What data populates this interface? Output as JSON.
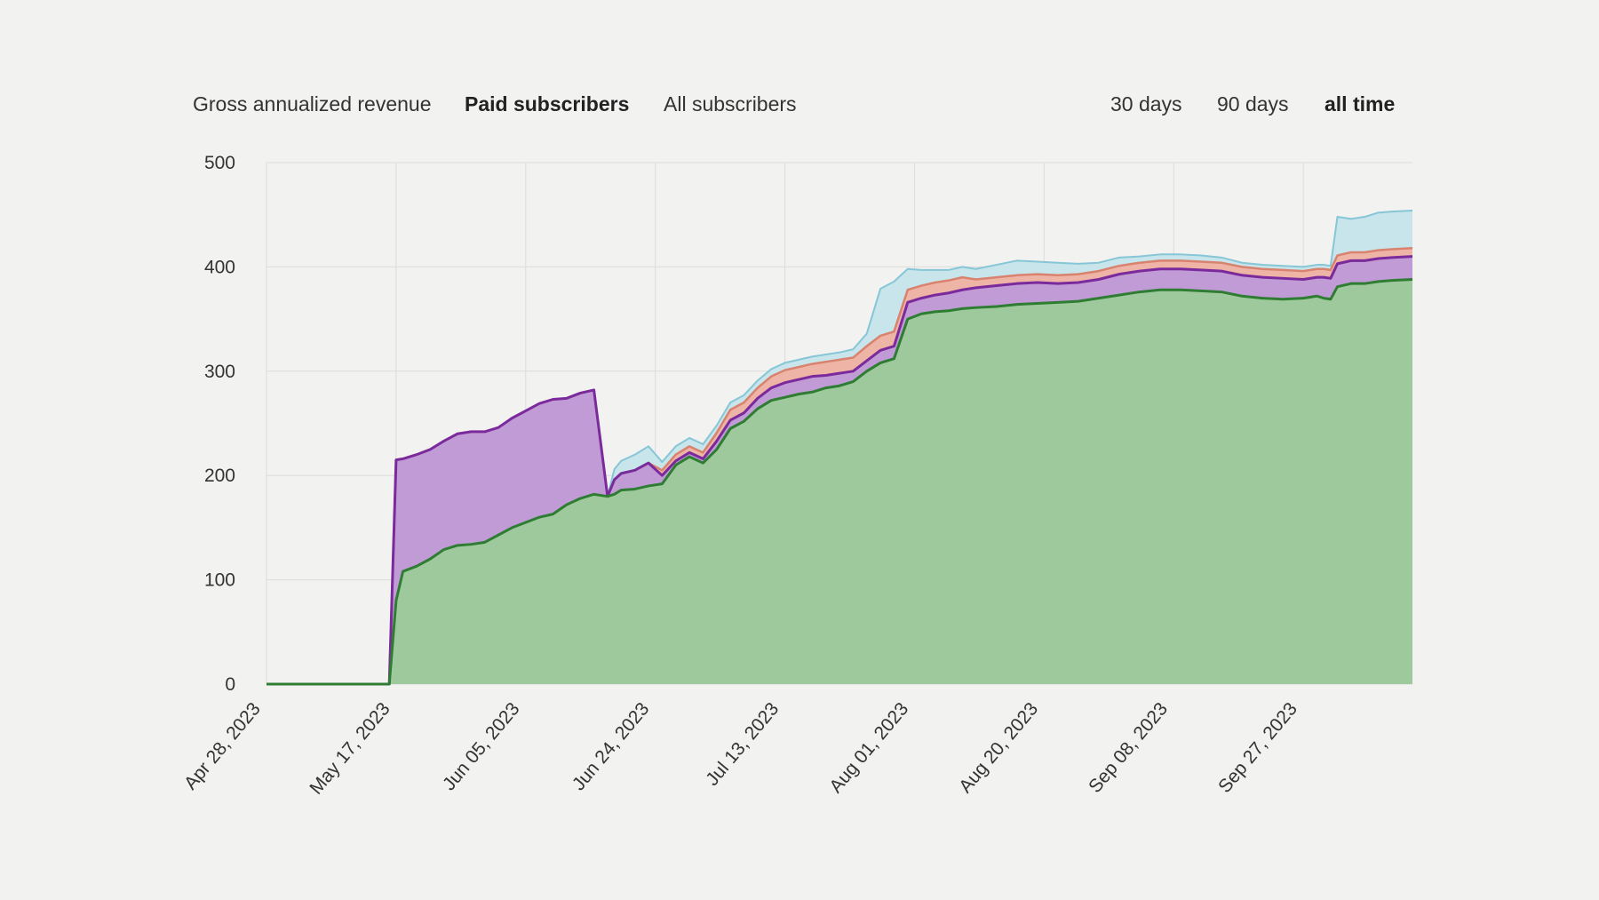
{
  "metric_tabs": [
    {
      "label": "Gross annualized revenue",
      "active": false
    },
    {
      "label": "Paid subscribers",
      "active": true
    },
    {
      "label": "All subscribers",
      "active": false
    }
  ],
  "range_tabs": [
    {
      "label": "30 days",
      "active": false
    },
    {
      "label": "90 days",
      "active": false
    },
    {
      "label": "all time",
      "active": true
    }
  ],
  "colors": {
    "green_fill": "#9ec99c",
    "green_line": "#2e7d32",
    "purple_fill": "#c09bd6",
    "purple_line": "#7b2a9c",
    "red_fill": "#eeb4a6",
    "red_line": "#d9826f",
    "blue_fill": "#c7e5ea",
    "blue_line": "#86c6d6",
    "grid": "#dcdcdc"
  },
  "chart_data": {
    "type": "area",
    "stacked": true,
    "x_start": "2023-04-28",
    "x_end": "2023-10-13",
    "xticks": [
      "Apr 28, 2023",
      "May 17, 2023",
      "Jun 05, 2023",
      "Jun 24, 2023",
      "Jul 13, 2023",
      "Aug 01, 2023",
      "Aug 20, 2023",
      "Sep 08, 2023",
      "Sep 27, 2023"
    ],
    "yticks": [
      "0",
      "100",
      "200",
      "300",
      "400",
      "500"
    ],
    "ylim": [
      0,
      500
    ],
    "grid": true,
    "legend": "none",
    "x": [
      "2023-04-28",
      "2023-05-05",
      "2023-05-12",
      "2023-05-15",
      "2023-05-16",
      "2023-05-17",
      "2023-05-18",
      "2023-05-20",
      "2023-05-22",
      "2023-05-24",
      "2023-05-26",
      "2023-05-28",
      "2023-05-30",
      "2023-06-01",
      "2023-06-03",
      "2023-06-05",
      "2023-06-07",
      "2023-06-09",
      "2023-06-11",
      "2023-06-13",
      "2023-06-15",
      "2023-06-17",
      "2023-06-18",
      "2023-06-19",
      "2023-06-21",
      "2023-06-23",
      "2023-06-25",
      "2023-06-27",
      "2023-06-29",
      "2023-07-01",
      "2023-07-03",
      "2023-07-05",
      "2023-07-07",
      "2023-07-09",
      "2023-07-11",
      "2023-07-13",
      "2023-07-15",
      "2023-07-17",
      "2023-07-19",
      "2023-07-21",
      "2023-07-23",
      "2023-07-25",
      "2023-07-27",
      "2023-07-29",
      "2023-07-31",
      "2023-08-02",
      "2023-08-04",
      "2023-08-06",
      "2023-08-08",
      "2023-08-10",
      "2023-08-13",
      "2023-08-16",
      "2023-08-19",
      "2023-08-22",
      "2023-08-25",
      "2023-08-28",
      "2023-08-31",
      "2023-09-03",
      "2023-09-06",
      "2023-09-09",
      "2023-09-12",
      "2023-09-15",
      "2023-09-18",
      "2023-09-21",
      "2023-09-24",
      "2023-09-27",
      "2023-09-29",
      "2023-09-30",
      "2023-10-01",
      "2023-10-02",
      "2023-10-04",
      "2023-10-06",
      "2023-10-08",
      "2023-10-10",
      "2023-10-13"
    ],
    "series": [
      {
        "values": [
          0,
          0,
          0,
          0,
          0,
          80,
          108,
          113,
          120,
          129,
          133,
          134,
          136,
          143,
          150,
          155,
          160,
          163,
          172,
          178,
          182,
          180,
          182,
          186,
          187,
          190,
          192,
          210,
          218,
          212,
          225,
          245,
          252,
          264,
          272,
          275,
          278,
          280,
          284,
          286,
          290,
          300,
          308,
          312,
          350,
          355,
          357,
          358,
          360,
          361,
          362,
          364,
          365,
          366,
          367,
          370,
          373,
          376,
          378,
          378,
          377,
          376,
          372,
          370,
          369,
          370,
          372,
          370,
          369,
          381,
          384,
          384,
          386,
          387,
          388
        ]
      },
      {
        "values": [
          0,
          0,
          0,
          0,
          0,
          135,
          108,
          107,
          105,
          104,
          107,
          108,
          106,
          103,
          105,
          107,
          109,
          110,
          102,
          101,
          100,
          0,
          14,
          16,
          18,
          22,
          8,
          4,
          4,
          4,
          8,
          8,
          8,
          10,
          12,
          14,
          14,
          15,
          12,
          12,
          10,
          10,
          12,
          12,
          16,
          15,
          16,
          17,
          18,
          19,
          20,
          20,
          20,
          18,
          18,
          18,
          20,
          20,
          20,
          20,
          20,
          20,
          20,
          20,
          20,
          18,
          18,
          20,
          20,
          22,
          22,
          22,
          22,
          22,
          22
        ]
      },
      {
        "values": [
          0,
          0,
          0,
          0,
          0,
          0,
          0,
          0,
          0,
          0,
          0,
          0,
          0,
          0,
          0,
          0,
          0,
          0,
          0,
          0,
          0,
          0,
          0,
          0,
          0,
          0,
          5,
          6,
          6,
          6,
          8,
          10,
          10,
          10,
          11,
          12,
          12,
          12,
          13,
          13,
          13,
          14,
          14,
          14,
          12,
          12,
          12,
          12,
          12,
          8,
          8,
          8,
          8,
          8,
          8,
          8,
          8,
          8,
          8,
          8,
          8,
          8,
          8,
          8,
          8,
          8,
          8,
          8,
          8,
          8,
          8,
          8,
          8,
          8,
          8
        ]
      },
      {
        "values": [
          0,
          0,
          0,
          0,
          0,
          0,
          0,
          0,
          0,
          0,
          0,
          0,
          0,
          0,
          0,
          0,
          0,
          0,
          0,
          0,
          0,
          0,
          10,
          12,
          15,
          16,
          8,
          8,
          8,
          8,
          7,
          7,
          7,
          7,
          7,
          7,
          7,
          7,
          7,
          7,
          8,
          12,
          45,
          48,
          20,
          15,
          12,
          10,
          10,
          10,
          12,
          14,
          12,
          12,
          10,
          8,
          8,
          6,
          6,
          6,
          6,
          5,
          4,
          4,
          4,
          4,
          4,
          4,
          4,
          37,
          32,
          34,
          36,
          36,
          36
        ]
      }
    ]
  }
}
